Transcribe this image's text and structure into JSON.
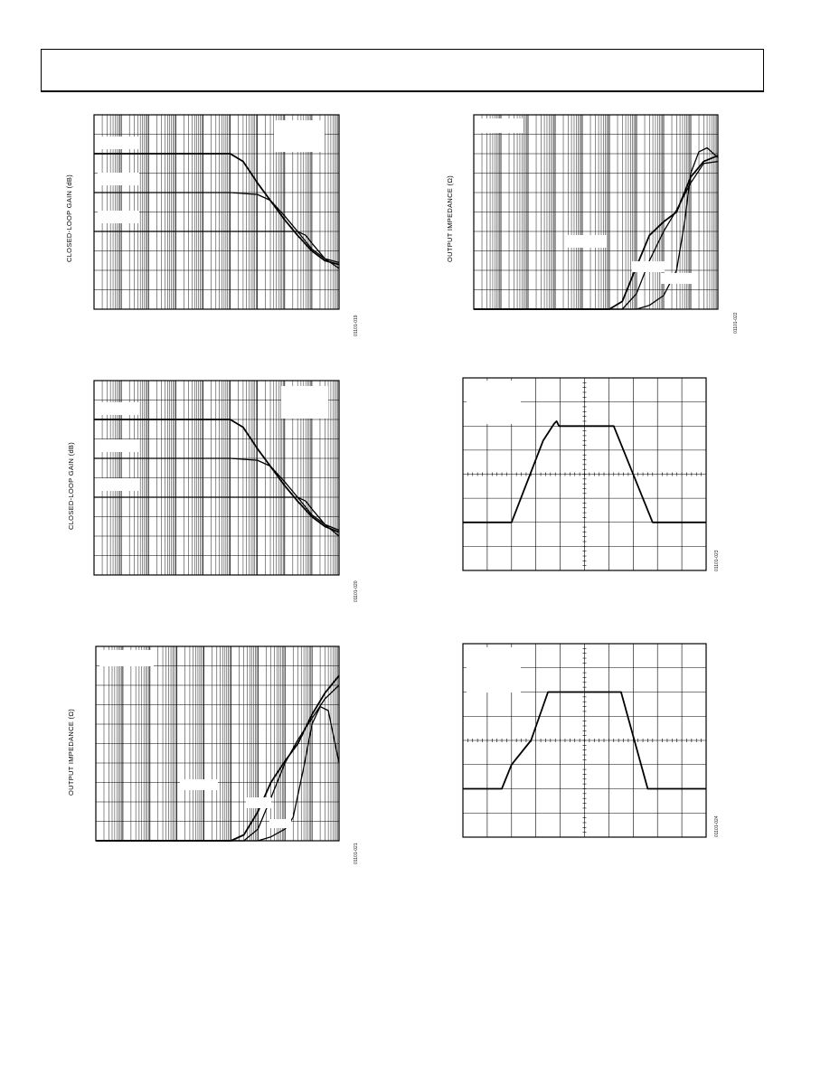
{
  "header": {
    "title": ""
  },
  "figures": {
    "fig19": {
      "ylabel": "CLOSED-LOOP GAIN (dB)",
      "fig_id": "01101-019"
    },
    "fig20": {
      "ylabel": "CLOSED-LOOP GAIN (dB)",
      "fig_id": "01101-020"
    },
    "fig21": {
      "ylabel": "OUTPUT IMPEDANCE (Ω)",
      "fig_id": "01101-021"
    },
    "fig22": {
      "ylabel": "OUTPUT IMPEDANCE (Ω)",
      "fig_id": "01101-022"
    },
    "fig23": {
      "fig_id": "01101-023"
    },
    "fig24": {
      "fig_id": "01101-024"
    }
  },
  "colors": {
    "line": "#000000",
    "grid": "#000000",
    "background": "#ffffff"
  },
  "chart_data": [
    {
      "id": "fig19",
      "type": "line",
      "xscale": "log",
      "xlim": [
        1,
        1000000000
      ],
      "ylim": [
        0,
        10
      ],
      "grid": true,
      "series": [
        {
          "x": [
            1,
            100000,
            300000,
            1000000,
            10000000,
            30000000,
            100000000,
            300000000,
            1000000000
          ],
          "y": [
            8,
            8,
            7.6,
            6.5,
            4.6,
            3.8,
            3.0,
            2.5,
            2.3
          ]
        },
        {
          "x": [
            1,
            100000,
            1000000,
            3000000,
            10000000,
            30000000,
            100000000,
            300000000,
            1000000000
          ],
          "y": [
            6,
            6,
            5.9,
            5.6,
            4.8,
            4.0,
            3.1,
            2.6,
            2.4
          ]
        },
        {
          "x": [
            1,
            10000000,
            30000000,
            60000000,
            100000000,
            300000000,
            1000000000
          ],
          "y": [
            4,
            4,
            4,
            3.8,
            3.4,
            2.6,
            2.1
          ]
        }
      ]
    },
    {
      "id": "fig20",
      "type": "line",
      "xscale": "log",
      "xlim": [
        1,
        1000000000
      ],
      "ylim": [
        0,
        10
      ],
      "grid": true,
      "series": [
        {
          "x": [
            1,
            100000,
            300000,
            1000000,
            10000000,
            30000000,
            100000000,
            300000000,
            1000000000
          ],
          "y": [
            8,
            8,
            7.6,
            6.5,
            4.6,
            3.8,
            3.0,
            2.5,
            2.2
          ]
        },
        {
          "x": [
            1,
            100000,
            1000000,
            3000000,
            10000000,
            30000000,
            100000000,
            300000000,
            1000000000
          ],
          "y": [
            6,
            6,
            5.9,
            5.6,
            4.8,
            4.0,
            3.1,
            2.6,
            2.3
          ]
        },
        {
          "x": [
            1,
            10000000,
            30000000,
            60000000,
            100000000,
            300000000,
            1000000000
          ],
          "y": [
            4,
            4,
            4,
            3.8,
            3.4,
            2.6,
            2.0
          ]
        }
      ]
    },
    {
      "id": "fig21",
      "type": "line",
      "xscale": "log",
      "xlim": [
        1,
        1000000000
      ],
      "ylim": [
        0,
        10
      ],
      "grid": true,
      "series": [
        {
          "x": [
            1,
            100000,
            300000,
            1000000,
            3000000,
            10000000,
            30000000,
            100000000,
            300000000,
            1000000000
          ],
          "y": [
            0,
            0,
            0.3,
            1.5,
            3.0,
            4.1,
            5.0,
            6.5,
            7.6,
            8.5
          ]
        },
        {
          "x": [
            1,
            300000,
            1000000,
            3000000,
            10000000,
            30000000,
            100000000,
            300000000,
            1000000000
          ],
          "y": [
            0,
            0,
            0.6,
            2.2,
            4.0,
            5.2,
            6.3,
            7.3,
            8.0
          ]
        },
        {
          "x": [
            1,
            1000000,
            3000000,
            10000000,
            20000000,
            50000000,
            100000000,
            200000000,
            400000000,
            1000000000
          ],
          "y": [
            0,
            0,
            0.2,
            0.6,
            1.2,
            3.8,
            6.0,
            6.9,
            6.7,
            4.0
          ]
        }
      ]
    },
    {
      "id": "fig22",
      "type": "line",
      "xscale": "log",
      "xlim": [
        1,
        1000000000
      ],
      "ylim": [
        0,
        10
      ],
      "grid": true,
      "series": [
        {
          "x": [
            1,
            100000,
            300000,
            1000000,
            3000000,
            10000000,
            30000000,
            100000000,
            300000000,
            1000000000
          ],
          "y": [
            0,
            0,
            0.4,
            2.2,
            3.8,
            4.5,
            5.0,
            6.8,
            7.6,
            7.9
          ]
        },
        {
          "x": [
            1,
            300000,
            1000000,
            3000000,
            10000000,
            30000000,
            100000000,
            300000000,
            1000000000
          ],
          "y": [
            0,
            0,
            0.8,
            2.5,
            4.0,
            5.1,
            6.5,
            7.5,
            7.6
          ]
        },
        {
          "x": [
            1,
            1000000,
            3000000,
            10000000,
            30000000,
            60000000,
            100000000,
            200000000,
            400000000,
            1000000000
          ],
          "y": [
            0,
            0,
            0.2,
            0.7,
            2.0,
            4.5,
            7.0,
            8.1,
            8.3,
            7.8
          ]
        }
      ]
    },
    {
      "id": "fig23",
      "type": "line",
      "xlim": [
        0,
        10
      ],
      "ylim": [
        0,
        8
      ],
      "grid": true,
      "series": [
        {
          "x": [
            0,
            2,
            3.3,
            3.75,
            3.85,
            3.95,
            4.2,
            6.2,
            7.8,
            10
          ],
          "y": [
            2,
            2,
            5.4,
            6.1,
            6.2,
            6.0,
            6.0,
            6.0,
            2,
            2
          ]
        }
      ]
    },
    {
      "id": "fig24",
      "type": "line",
      "xlim": [
        0,
        10
      ],
      "ylim": [
        0,
        8
      ],
      "grid": true,
      "series": [
        {
          "x": [
            0,
            1.6,
            2.0,
            2.8,
            3.5,
            5.0,
            6.5,
            7.6,
            10
          ],
          "y": [
            2,
            2,
            3.0,
            4.0,
            6.0,
            6.0,
            6.0,
            2,
            2
          ]
        }
      ]
    }
  ]
}
